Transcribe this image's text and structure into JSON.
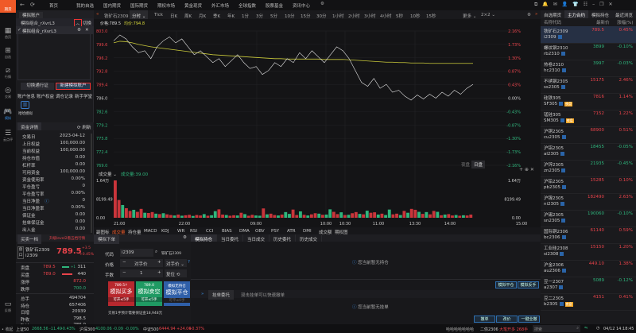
{
  "app": {
    "logo": "期货",
    "nav": [
      "首页",
      "我的自选",
      "国内期货",
      "国际期货",
      "期权市场",
      "黄金现货",
      "外汇市场",
      "全球指数",
      "股票基金",
      "资讯中心"
    ]
  },
  "sidebar": [
    "首页",
    "自选",
    "行情",
    "交易",
    "模拟",
    "云点评"
  ],
  "sidebar_feedback": "反馈",
  "account": {
    "header": "模拟账户",
    "account_name": "模拟组合_rXvrL3",
    "collapse_label": "切换",
    "selected_account": "模拟组合_rXvrL3",
    "switch_btn": "切换通行证",
    "new_btn": "新建模拟账户",
    "tabs": [
      "账户信息",
      "账户权益",
      "调仓记录",
      "新手学堂"
    ],
    "sim_label": "哈哈模拟",
    "detail_tab": "资金详情",
    "refresh": "刷新",
    "rows": [
      [
        "交易日",
        "2023-04-12"
      ],
      [
        "上日权益",
        "100,000.00"
      ],
      [
        "当前权益",
        "100,000.00"
      ],
      [
        "持仓市值",
        "0.00"
      ],
      [
        "杠杆率",
        "0.00"
      ],
      [
        "可用资金",
        "100,000.00"
      ],
      [
        "资金使用率",
        "0.00%"
      ],
      [
        "平仓盈亏",
        "0"
      ],
      [
        "平仓盈亏率",
        "0.00%"
      ],
      [
        "当日净盈",
        "0"
      ],
      [
        "当日净盈率",
        "0.00%"
      ],
      [
        "保证金",
        "0.00"
      ],
      [
        "挂单保证金",
        "0.00"
      ],
      [
        "出入金",
        "0.00"
      ]
    ]
  },
  "quote": {
    "tab": "买卖一档",
    "upgrade": "升级level2看五档行情",
    "side_label": "盘口",
    "name": "铁矿石2309",
    "code": "i2309",
    "price": "789.5",
    "change": "+3.5",
    "change_pct": "+0.45%",
    "ask": {
      "label": "卖盘",
      "price": "789.5",
      "delta": "+1",
      "vol": "311"
    },
    "bid": {
      "label": "买盘",
      "price": "789.0",
      "vol": "440"
    },
    "limit_up": {
      "label": "涨停",
      "value": "872.0"
    },
    "limit_down": {
      "label": "跌停",
      "value": "700.0"
    },
    "stats": [
      [
        "总手",
        "494704"
      ],
      [
        "持仓",
        "657406"
      ],
      [
        "日增",
        "20939"
      ],
      [
        "昨收",
        "798.5"
      ],
      [
        "昨结",
        "786.0"
      ]
    ]
  },
  "chart": {
    "symbol": "铁矿石2309",
    "mode": "分时",
    "periods": [
      "Tick",
      "日K",
      "周K",
      "月K",
      "季K",
      "年K",
      "1分",
      "3分",
      "5分",
      "10分",
      "15分",
      "30分",
      "1小时",
      "2小时",
      "3小时",
      "4小时",
      "5秒",
      "10秒",
      "15秒"
    ],
    "more": "更多",
    "layout": "2×2",
    "price_label": "价格:789.5",
    "avg_label": "均价:794.8",
    "session_btns": [
      "夜盘",
      "日盘"
    ],
    "vol_menu": "成交量",
    "vol_label": "成交量:39.00",
    "indicators": [
      "副图标",
      "成交量",
      "持仓量",
      "MACD",
      "KDJ",
      "WR",
      "RSI",
      "CCI",
      "BIAS",
      "DMA",
      "OBV",
      "PSY",
      "ATR",
      "DMI",
      "成交额",
      "期权图"
    ]
  },
  "chart_data": {
    "type": "line",
    "y_ticks": [
      "803.0",
      "799.6",
      "796.2",
      "792.8",
      "789.4",
      "786.0",
      "782.6",
      "779.2",
      "775.8",
      "772.4",
      "769.0"
    ],
    "ylim": [
      769.0,
      803.0
    ],
    "pct_ticks": [
      "2.16%",
      "1.73%",
      "1.30%",
      "0.87%",
      "0.43%",
      "0.00%",
      "-0.43%",
      "-0.87%",
      "-1.30%",
      "-1.73%",
      "-2.16%"
    ],
    "x_ticks": [
      "21:00",
      "22:00",
      "09:00",
      "10:00",
      "10:30",
      "11:00",
      "13:30",
      "14:00",
      "15:00"
    ],
    "price": [
      800.5,
      802,
      801,
      799,
      797.5,
      798,
      796,
      799,
      800.5,
      801.5,
      800,
      801,
      799,
      797,
      798,
      796.5,
      795,
      796,
      794,
      795.5,
      797,
      795,
      793.5,
      794,
      792,
      793,
      795,
      794,
      796,
      795,
      797.5,
      796,
      798,
      796.5,
      795,
      797,
      799,
      798,
      796,
      793,
      790,
      789,
      791,
      788.5,
      789.5,
      787.5,
      788,
      786.5,
      785.5,
      786.8,
      785.8,
      787,
      786,
      787.5,
      786.5,
      788,
      787,
      788.5,
      789.5
    ],
    "avg": [
      800,
      800.4,
      800.3,
      800,
      799.6,
      799.3,
      799,
      798.8,
      798.6,
      798.4,
      798.2,
      798,
      797.8,
      797.6,
      797.4,
      797.2,
      797,
      796.9,
      796.8,
      796.7,
      796.6,
      796.5,
      796.4,
      796.3,
      796.2,
      796.1,
      796,
      796,
      795.9,
      795.9,
      795.9,
      795.9,
      795.9,
      795.9,
      795.8,
      795.8,
      795.8,
      795.8,
      795.7,
      795.6,
      795.5,
      795.4,
      795.3,
      795.2,
      795.1,
      795.1,
      795,
      795,
      794.9,
      794.9,
      794.9,
      794.8,
      794.8,
      794.8,
      794.8,
      794.8,
      794.8,
      794.8,
      794.8
    ],
    "vol_ticks": [
      "1.64万",
      "8199.49",
      "0.00"
    ],
    "vol_max": 16400,
    "volume": [
      16400,
      7800,
      5600,
      4200,
      3000,
      3500,
      2600,
      3900,
      2200,
      2100,
      2500,
      1800,
      1600,
      2000,
      1500,
      1200,
      1000,
      1400,
      900,
      1100,
      1300,
      800,
      1200,
      1000,
      1600,
      900,
      1100,
      2900,
      3700,
      1400,
      1200,
      900,
      1100,
      1000,
      2200,
      1600,
      900,
      1300,
      1000,
      900,
      4100,
      1500,
      1800,
      1200,
      1000,
      1400,
      2500,
      1700,
      3600,
      1200,
      2800,
      1300,
      1000,
      1500,
      2000,
      1800,
      1300,
      1400,
      3700,
      2600,
      1600,
      2400,
      1200,
      1300,
      2000,
      2500,
      1700,
      1500,
      3100,
      2200,
      2400,
      1400,
      1800,
      1200,
      3600,
      1500,
      1800,
      1200,
      3000,
      2200,
      3900,
      3500,
      2600,
      1700,
      2500,
      1500,
      3000,
      2600,
      1100,
      1400,
      1600,
      1000,
      1200,
      900,
      1100,
      1000,
      1400
    ],
    "vol_dir": "rrgrrgrrgrrgrgrrgrgrrgrrgrggrrgrrgrgrrggrgrrgrggrrgrgrrgrggrrgrgrrgrgrrgrggrrgrgrrgrgrrgrgrrgrgr"
  },
  "order": {
    "tab": "模拟下单",
    "code_label": "代码",
    "code": "i2309",
    "code_name": "铁矿石2309",
    "price_label": "价格",
    "price_type": "对手价",
    "price_type2": "对手价",
    "qty_label": "手数",
    "qty": "1",
    "qty_mode": "复位",
    "buy": {
      "price": "789.5↑",
      "label": "模拟买多",
      "avail": "可开≤5手"
    },
    "sell": {
      "price": "789.0",
      "label": "模拟卖空",
      "avail": "可开≤5手"
    },
    "close": {
      "price": "模拟无持仓",
      "label": "模拟平仓",
      "avail": "可平≤0手"
    },
    "note": "交易1手预计需要保证金18,948元"
  },
  "positions": {
    "tabs": [
      "模拟持仓",
      "当日委托",
      "当日成交",
      "历史委托",
      "历史成交"
    ],
    "empty": "您当前暂无持仓",
    "btns": [
      "模拟平仓",
      "模拟反手"
    ],
    "pending_tab": "挂单委托",
    "pending_hint": "双击挂单可以快速撤单",
    "pending_empty": "您当前暂无挂单",
    "pending_btns": [
      "撤单",
      "改价",
      "一键全撤"
    ]
  },
  "watchlist": {
    "tabs": [
      "自选期货",
      "主力合约",
      "模拟持仓",
      "最近浏览"
    ],
    "cols": [
      "名称代码",
      "最新价",
      "涨幅(%)"
    ],
    "items": [
      {
        "name": "铁矿石2309",
        "code": "i2309",
        "price": "789.5",
        "chg": "0.45%",
        "up": true
      },
      {
        "name": "螺纹钢2310",
        "code": "rb2310",
        "price": "3899",
        "chg": "-0.10%",
        "up": false
      },
      {
        "name": "热卷2310",
        "code": "hc2310",
        "price": "3997",
        "chg": "-0.03%",
        "up": false
      },
      {
        "name": "不锈钢2305",
        "code": "ss2305",
        "price": "15175",
        "chg": "2.46%",
        "up": true
      },
      {
        "name": "硅铁305",
        "code": "SF305",
        "price": "7816",
        "chg": "1.14%",
        "up": true,
        "tag": "夜盘"
      },
      {
        "name": "锰硅305",
        "code": "SM305",
        "price": "7152",
        "chg": "1.22%",
        "up": true,
        "tag": "夜盘"
      },
      {
        "name": "沪铜2305",
        "code": "cu2305",
        "price": "68900",
        "chg": "0.51%",
        "up": true
      },
      {
        "name": "沪铝2305",
        "code": "al2305",
        "price": "18455",
        "chg": "-0.05%",
        "up": false
      },
      {
        "name": "沪锌2305",
        "code": "zn2305",
        "price": "21935",
        "chg": "-0.45%",
        "up": false
      },
      {
        "name": "沪铅2305",
        "code": "pb2305",
        "price": "15285",
        "chg": "0.10%",
        "up": true
      },
      {
        "name": "沪镍2305",
        "code": "ni2305",
        "price": "182490",
        "chg": "2.63%",
        "up": true
      },
      {
        "name": "沪锡2305",
        "code": "sn2305",
        "price": "190060",
        "chg": "-0.10%",
        "up": false
      },
      {
        "name": "国际铜2306",
        "code": "bc2306",
        "price": "61140",
        "chg": "0.59%",
        "up": true
      },
      {
        "name": "工业硅2308",
        "code": "si2308",
        "price": "15150",
        "chg": "1.20%",
        "up": true
      },
      {
        "name": "沪金2306",
        "code": "au2306",
        "price": "449.10",
        "chg": "1.38%",
        "up": true
      },
      {
        "name": "豆一2307",
        "code": "a2307",
        "price": "5089",
        "chg": "-0.12%",
        "up": false
      },
      {
        "name": "豆二2305",
        "code": "b2305",
        "price": "4151",
        "chg": "0.41%",
        "up": true,
        "tag": "夜盘"
      }
    ]
  },
  "status": {
    "collapse": "收起",
    "idx": [
      {
        "name": "上证50",
        "val": "2668.56",
        "chg": "-11.49",
        "pct": "-0.43%",
        "up": false
      },
      {
        "name": "沪深300",
        "val": "4100.06",
        "chg": "-0.09",
        "pct": "-0.00%",
        "up": false
      },
      {
        "name": "中证500",
        "val": "6444.94",
        "chg": "+24.06",
        "pct": "+0.37%",
        "up": true
      }
    ],
    "ticker": "哈哈哈哈哈哈哈",
    "alert_code": "二债2306",
    "alert_text": "大笔开多 268手",
    "search_placeholder": "搜索",
    "time": "04/12 14:18:45"
  },
  "colors": {
    "up": "#e8434a",
    "down": "#2fb57c",
    "avg": "#d9d93a",
    "accent": "#f05a28"
  }
}
